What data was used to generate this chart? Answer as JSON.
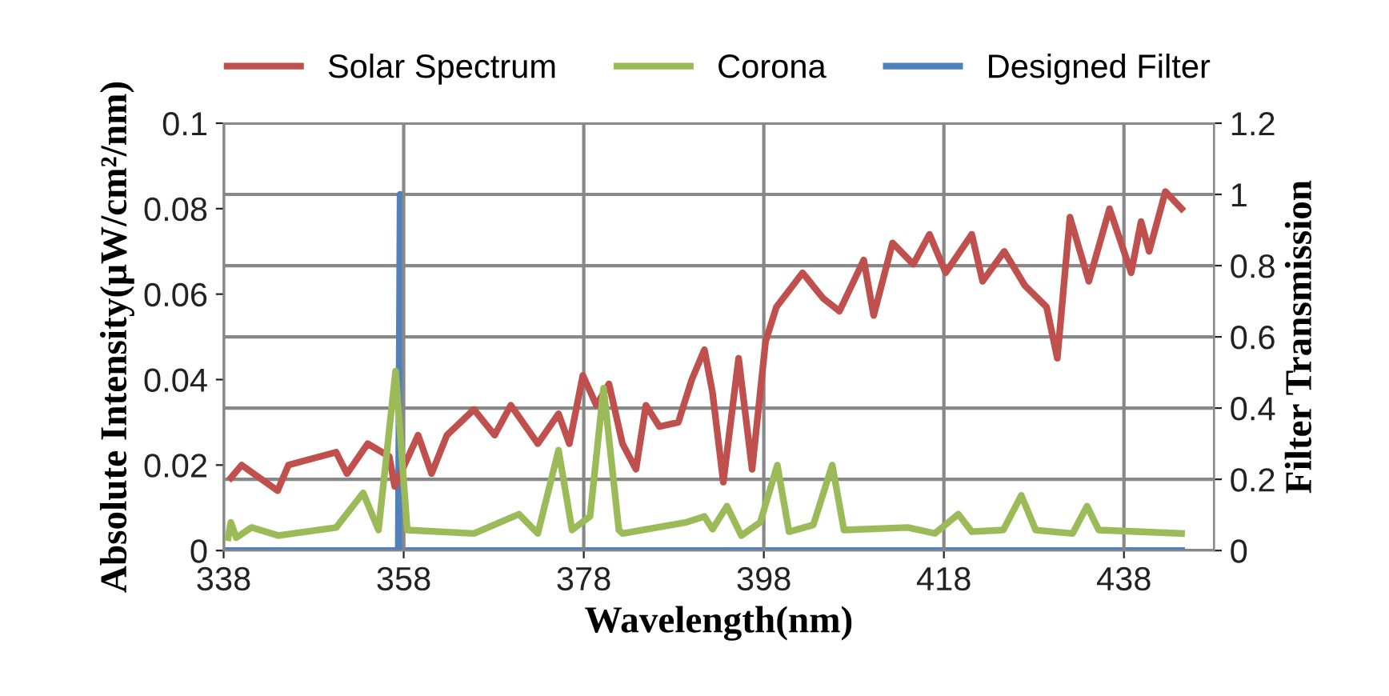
{
  "chart_data": {
    "type": "line",
    "xlabel": "Wavelength(nm)",
    "ylabel": "Absolute Intensity(μW/cm²/nm)",
    "y2label": "Filter Transmission",
    "xlim": [
      338,
      448
    ],
    "xticks": [
      338,
      358,
      378,
      398,
      418,
      438
    ],
    "ylim": [
      0,
      0.1
    ],
    "yticks": [
      0,
      0.02,
      0.04,
      0.06,
      0.08,
      0.1
    ],
    "y2lim": [
      0,
      1.2
    ],
    "y2ticks": [
      0,
      0.2,
      0.4,
      0.6,
      0.8,
      1,
      1.2
    ],
    "grid": true,
    "legend": "top",
    "series": [
      {
        "name": "Solar Spectrum",
        "color": "#c0504d",
        "x": [
          338.8,
          340,
          344,
          345.2,
          350.5,
          351.7,
          354,
          356.4,
          357,
          359.6,
          361.1,
          362.8,
          365.8,
          368.1,
          369.9,
          372.9,
          375.2,
          376.4,
          377.9,
          379.4,
          380.8,
          382.3,
          383.8,
          384.9,
          386.4,
          388.5,
          390,
          391.4,
          392.3,
          393.5,
          395.2,
          396.7,
          398.2,
          399.4,
          402.3,
          404.6,
          406.4,
          409.1,
          410.2,
          412.3,
          414.6,
          416.4,
          418.2,
          421.1,
          422.3,
          424.7,
          427,
          429.4,
          430.6,
          432,
          434.1,
          436.4,
          438.8,
          439.9,
          440.8,
          442.6,
          444.4
        ],
        "values": [
          0.017,
          0.02,
          0.014,
          0.02,
          0.023,
          0.018,
          0.025,
          0.022,
          0.015,
          0.027,
          0.018,
          0.027,
          0.033,
          0.027,
          0.034,
          0.025,
          0.032,
          0.025,
          0.041,
          0.034,
          0.039,
          0.025,
          0.019,
          0.034,
          0.029,
          0.03,
          0.04,
          0.047,
          0.037,
          0.016,
          0.045,
          0.019,
          0.049,
          0.057,
          0.065,
          0.059,
          0.056,
          0.068,
          0.055,
          0.072,
          0.067,
          0.074,
          0.065,
          0.074,
          0.063,
          0.07,
          0.062,
          0.057,
          0.045,
          0.078,
          0.063,
          0.08,
          0.065,
          0.077,
          0.07,
          0.084,
          0.08
        ]
      },
      {
        "name": "Corona",
        "color": "#9bbb59",
        "x": [
          338.5,
          338.8,
          339.4,
          341.1,
          344.1,
          350.5,
          353.5,
          355.2,
          357.1,
          358.4,
          365.8,
          370.8,
          372.9,
          375.2,
          376.7,
          378.7,
          380.2,
          381.9,
          382.3,
          389.4,
          391.4,
          392.3,
          393.9,
          395.5,
          397.6,
          399.5,
          400.8,
          403.5,
          405.6,
          406.9,
          414,
          417,
          419.6,
          421.1,
          424.6,
          426.6,
          428.2,
          432.3,
          433.9,
          435.2,
          444.4
        ],
        "values": [
          0.003,
          0.0066,
          0.003,
          0.0054,
          0.0035,
          0.0054,
          0.0135,
          0.0048,
          0.042,
          0.0048,
          0.004,
          0.0085,
          0.004,
          0.0235,
          0.0048,
          0.008,
          0.038,
          0.0048,
          0.004,
          0.0066,
          0.008,
          0.005,
          0.0104,
          0.0035,
          0.0066,
          0.02,
          0.0044,
          0.006,
          0.02,
          0.0048,
          0.0054,
          0.004,
          0.0085,
          0.0044,
          0.0048,
          0.0129,
          0.0048,
          0.004,
          0.0104,
          0.0048,
          0.004
        ]
      },
      {
        "name": "Designed Filter",
        "color": "#4f81bd",
        "axis": "y2",
        "x": [
          338.5,
          357.4,
          357.6,
          357.8,
          444.4
        ],
        "values": [
          0,
          0,
          1,
          0,
          0
        ]
      }
    ]
  }
}
